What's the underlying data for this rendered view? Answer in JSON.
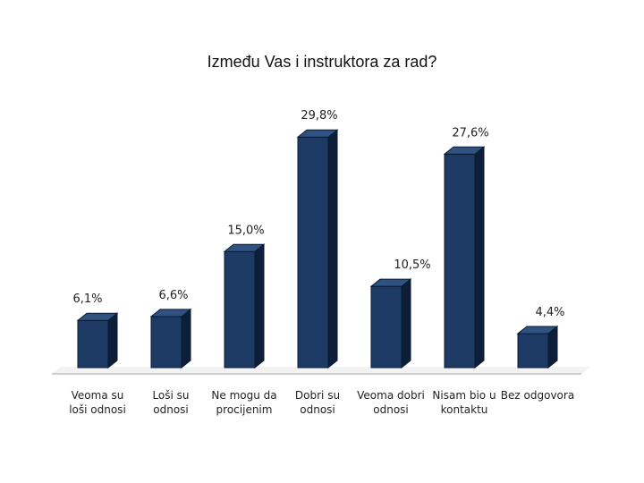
{
  "chart_data": {
    "type": "bar",
    "title": "Između Vas i instruktora za rad?",
    "categories": [
      "Veoma su loši odnosi",
      "Loši su odnosi",
      "Ne mogu da procijenim",
      "Dobri su odnosi",
      "Veoma dobri odnosi",
      "Nisam bio u kontaktu",
      "Bez odgovora"
    ],
    "category_lines": [
      [
        "Veoma su",
        "loši odnosi"
      ],
      [
        "Loši su",
        "odnosi"
      ],
      [
        "Ne mogu da",
        "procijenim"
      ],
      [
        "Dobri su",
        "odnosi"
      ],
      [
        "Veoma dobri",
        "odnosi"
      ],
      [
        "Nisam bio u",
        "kontaktu"
      ],
      [
        "Bez odgovora"
      ]
    ],
    "values": [
      6.1,
      6.6,
      15.0,
      29.8,
      10.5,
      27.6,
      4.4
    ],
    "value_labels": [
      "6,1%",
      "6,6%",
      "15,0%",
      "29,8%",
      "10,5%",
      "27,6%",
      "4,4%"
    ],
    "unit": "%",
    "bar_style": "3d-column",
    "grid": false,
    "legend": "none",
    "colors": {
      "bar_front": "#1c3a63",
      "bar_side": "#0d1f38",
      "bar_top": "#2f5283",
      "bar_outline": "#0a1a30",
      "floor": "#c0c0c0"
    }
  }
}
